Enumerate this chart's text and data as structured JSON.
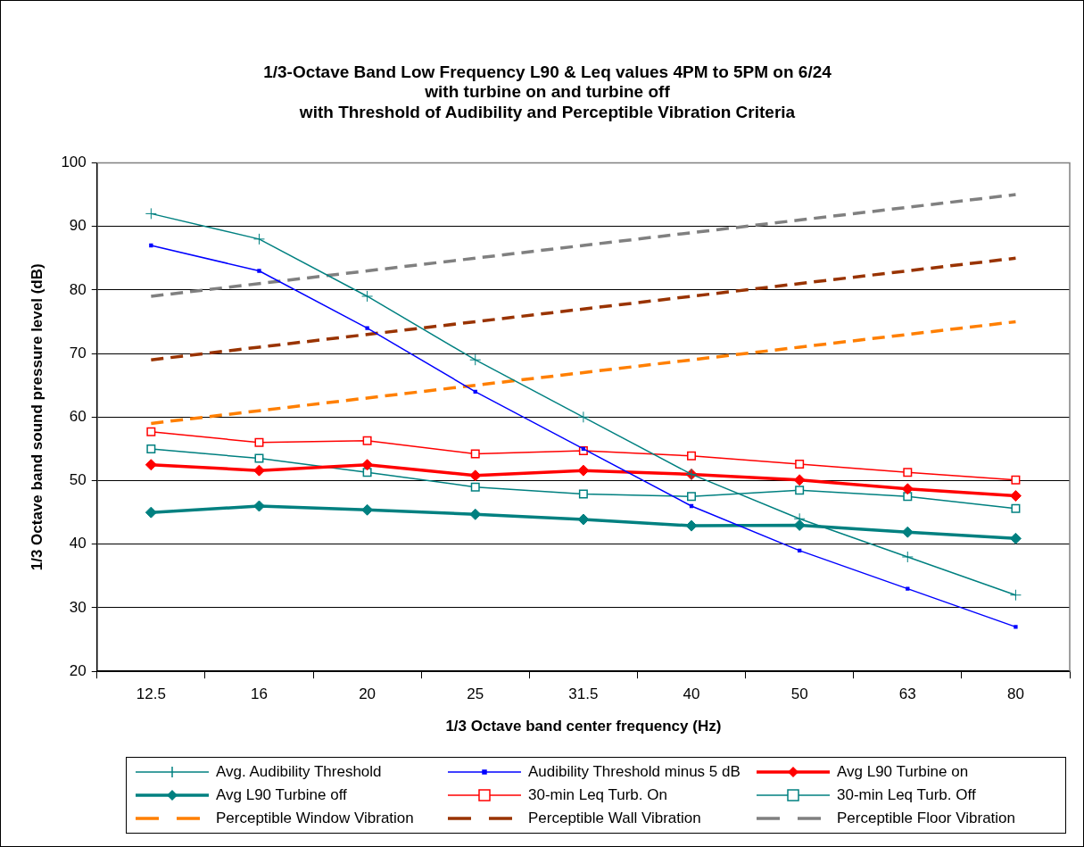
{
  "chart_data": {
    "type": "line",
    "title": "1/3-Octave Band Low Frequency L90 & Leq values 4PM to 5PM on 6/24\nwith turbine on and turbine off\nwith Threshold of Audibility and Perceptible Vibration Criteria",
    "xlabel": "1/3 Octave band center frequency (Hz)",
    "ylabel": "1/3 Octave band sound pressure level (dB)",
    "categories": [
      "12.5",
      "16",
      "20",
      "25",
      "31.5",
      "40",
      "50",
      "63",
      "80"
    ],
    "ylim": [
      20,
      100
    ],
    "yticks": [
      20,
      30,
      40,
      50,
      60,
      70,
      80,
      90,
      100
    ],
    "grid": "y",
    "legend": "bottom",
    "series": [
      {
        "name": "Avg. Audibility Threshold",
        "color": "#008080",
        "marker": "cross",
        "values": [
          92,
          88,
          79,
          69,
          60,
          51,
          44,
          38,
          32
        ]
      },
      {
        "name": "Audibility Threshold minus 5 dB",
        "color": "#0000ff",
        "marker": "square",
        "values": [
          87,
          83,
          74,
          64,
          55,
          46,
          39,
          33,
          27
        ]
      },
      {
        "name": "Avg L90 Turbine on",
        "color": "#ff0000",
        "marker": "diamond",
        "values": [
          52.5,
          51.6,
          52.5,
          50.8,
          51.6,
          51.0,
          50.1,
          48.7,
          47.6
        ]
      },
      {
        "name": "Avg L90 Turbine off",
        "color": "#008080",
        "marker": "diamond",
        "values": [
          45.0,
          46.0,
          45.4,
          44.7,
          43.9,
          42.9,
          43.0,
          41.9,
          40.9
        ]
      },
      {
        "name": "30-min Leq Turb. On",
        "color": "#ff0000",
        "marker": "square",
        "values": [
          57.7,
          56.0,
          56.3,
          54.2,
          54.7,
          53.9,
          52.6,
          51.3,
          50.1
        ]
      },
      {
        "name": "30-min Leq Turb. Off",
        "color": "#008080",
        "marker": "square",
        "values": [
          55.0,
          53.5,
          51.3,
          49.0,
          47.9,
          47.5,
          48.5,
          47.5,
          45.6
        ]
      },
      {
        "name": "Perceptible Window Vibration",
        "color": "#ff7f00",
        "marker": "none",
        "line_style": "dashed",
        "values": [
          59,
          61,
          63,
          65,
          67,
          69,
          71,
          73,
          75
        ]
      },
      {
        "name": "Perceptible Wall Vibration",
        "color": "#993300",
        "marker": "none",
        "line_style": "dashed",
        "values": [
          69,
          71,
          73,
          75,
          77,
          79,
          81,
          83,
          85
        ]
      },
      {
        "name": "Perceptible Floor Vibration",
        "color": "#808080",
        "marker": "none",
        "line_style": "dashed",
        "values": [
          79,
          81,
          83,
          85,
          87,
          89,
          91,
          93,
          95
        ]
      }
    ]
  }
}
